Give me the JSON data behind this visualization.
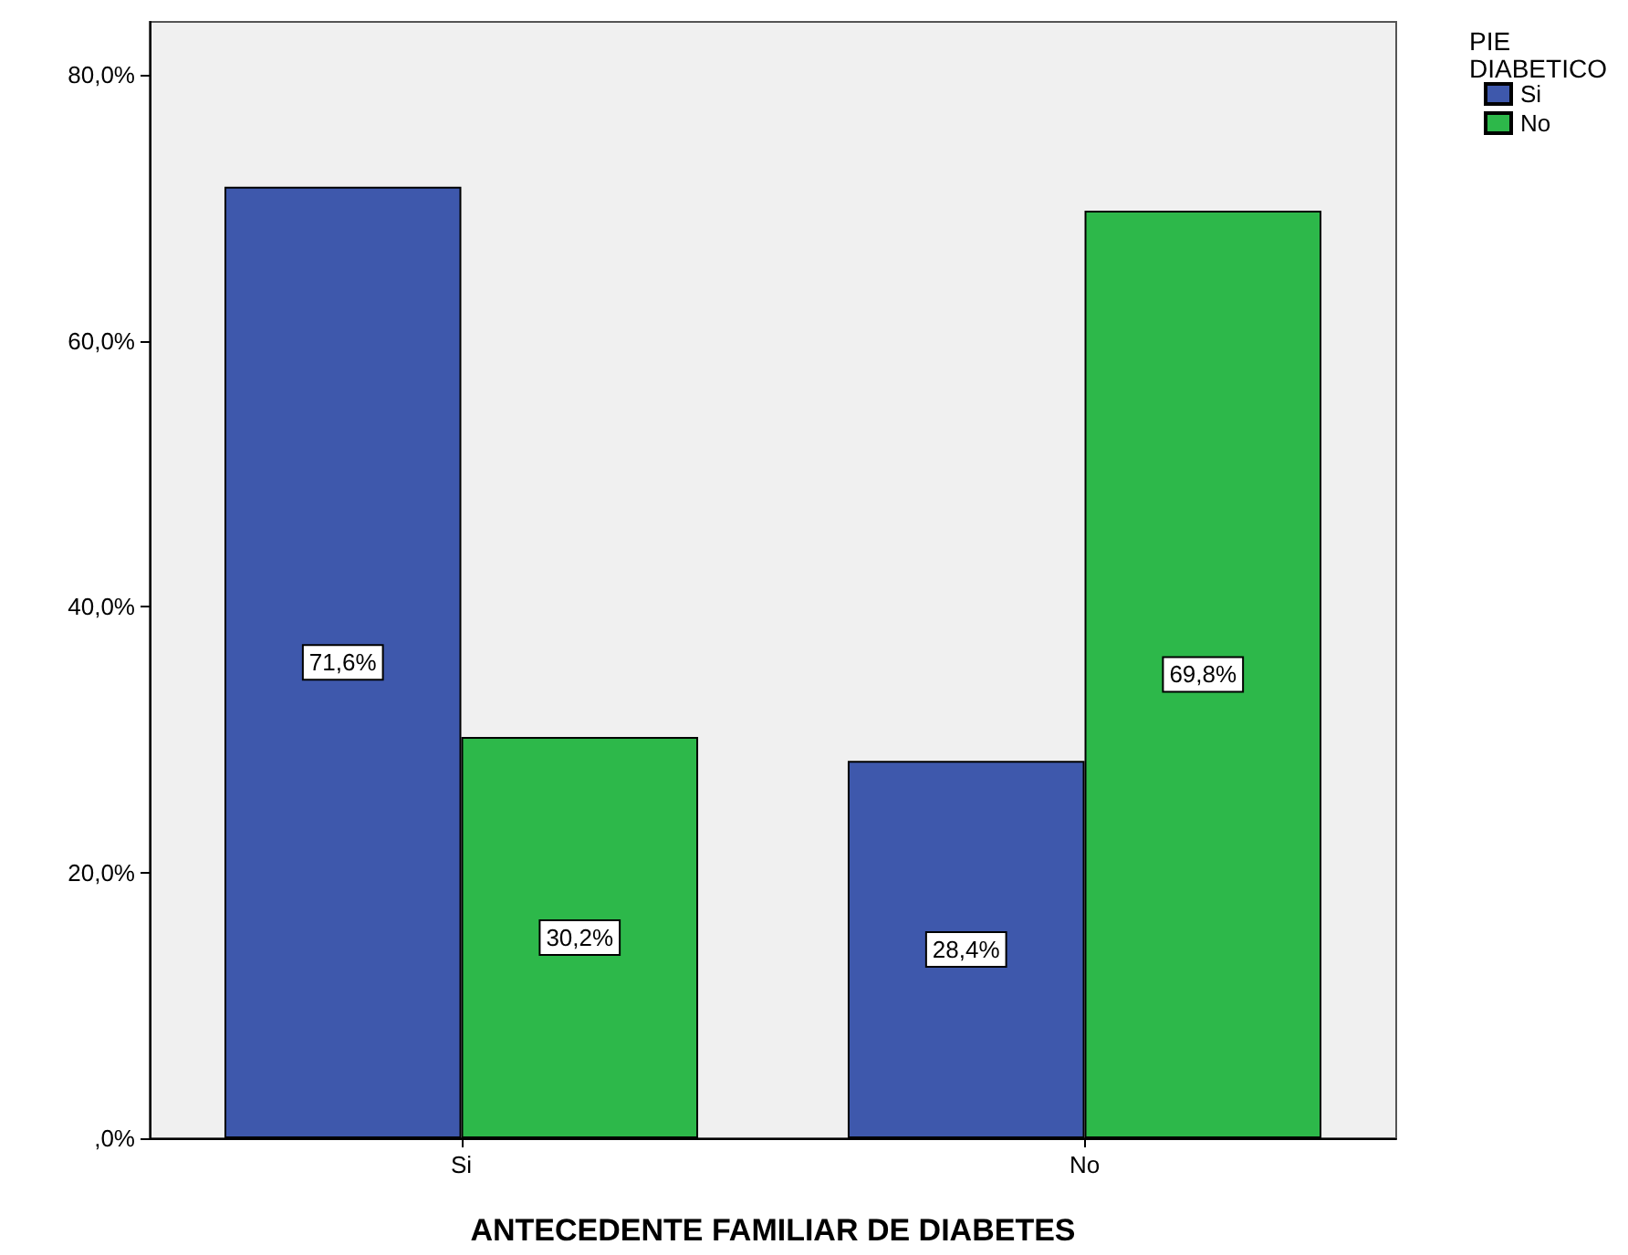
{
  "chart_data": {
    "type": "bar",
    "xlabel": "ANTECEDENTE FAMILIAR DE DIABETES",
    "legend_title": "PIE DIABETICO",
    "legend": "top right",
    "categories": [
      "Si",
      "No"
    ],
    "series": [
      {
        "name": "Si",
        "color": "#3e58ac",
        "values": [
          71.6,
          28.4
        ],
        "value_labels": [
          "71,6%",
          "28,4%"
        ]
      },
      {
        "name": "No",
        "color": "#2db84a",
        "values": [
          30.2,
          69.8
        ],
        "value_labels": [
          "30,2%",
          "69,8%"
        ]
      }
    ],
    "ylim": [
      0,
      84
    ],
    "yticks": [
      {
        "value": 0,
        "label": ",0%"
      },
      {
        "value": 20,
        "label": "20,0%"
      },
      {
        "value": 40,
        "label": "40,0%"
      },
      {
        "value": 60,
        "label": "60,0%"
      },
      {
        "value": 80,
        "label": "80,0%"
      }
    ]
  }
}
